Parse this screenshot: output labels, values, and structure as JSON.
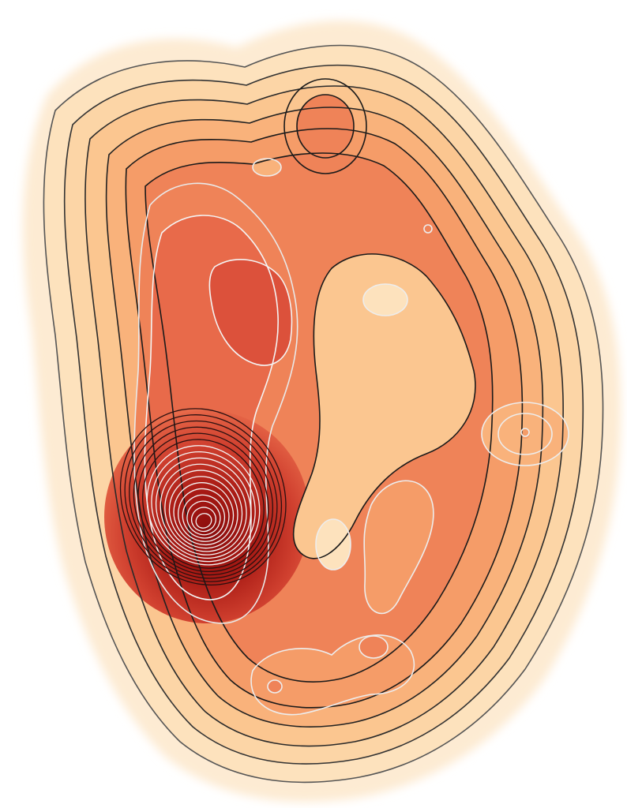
{
  "image": {
    "subject": "contour-density-map",
    "palette": {
      "background": "#ffffff",
      "halo": "#fdebd3",
      "l1": "#fde2bd",
      "l2": "#fcd5a6",
      "l3": "#fbc690",
      "l4": "#f9b27b",
      "l5": "#f59c68",
      "l6": "#ef8358",
      "l7": "#e86a4a",
      "l8": "#dc513b",
      "peak": "#a81a14",
      "peak_core": "#8a0b0b",
      "stroke_dark": "#1a1a1a",
      "stroke_light": "#f4f4f4"
    }
  }
}
